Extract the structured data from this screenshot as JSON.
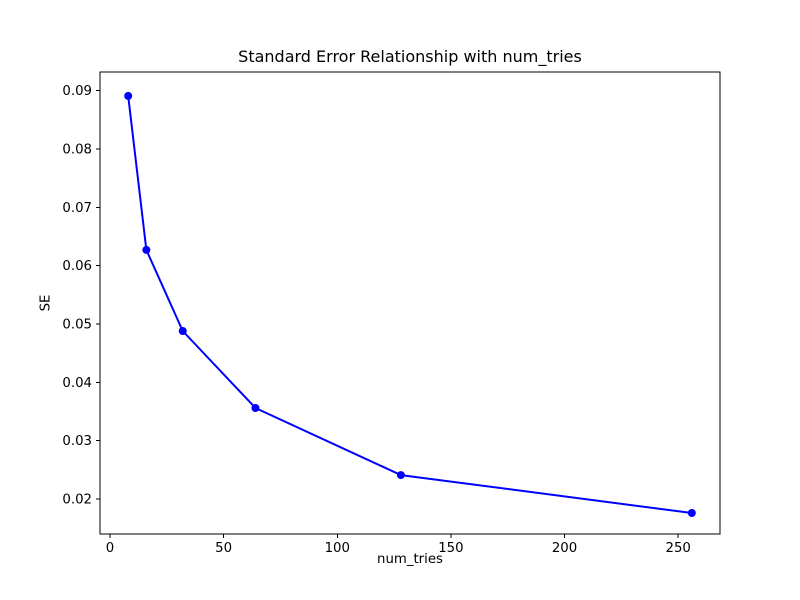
{
  "chart_data": {
    "type": "line",
    "title": "Standard Error Relationship with num_tries",
    "xlabel": "num_tries",
    "ylabel": "SE",
    "series": [
      {
        "name": "SE vs num_tries",
        "color": "#0000ff",
        "marker": "circle",
        "x": [
          8,
          16,
          32,
          64,
          128,
          256
        ],
        "y": [
          0.0891,
          0.0627,
          0.0488,
          0.0356,
          0.0241,
          0.0176
        ]
      }
    ],
    "xlim": [
      -4.4,
      268.4
    ],
    "ylim": [
      0.014,
      0.0932
    ],
    "xticks": {
      "values": [
        0,
        50,
        100,
        150,
        200,
        250
      ],
      "labels": [
        "0",
        "50",
        "100",
        "150",
        "200",
        "250"
      ]
    },
    "yticks": {
      "values": [
        0.02,
        0.03,
        0.04,
        0.05,
        0.06,
        0.07,
        0.08,
        0.09
      ],
      "labels": [
        "0.02",
        "0.03",
        "0.04",
        "0.05",
        "0.06",
        "0.07",
        "0.08",
        "0.09"
      ]
    },
    "grid": false,
    "legend": false,
    "spine_color": "#000000",
    "background_color": "#ffffff"
  }
}
